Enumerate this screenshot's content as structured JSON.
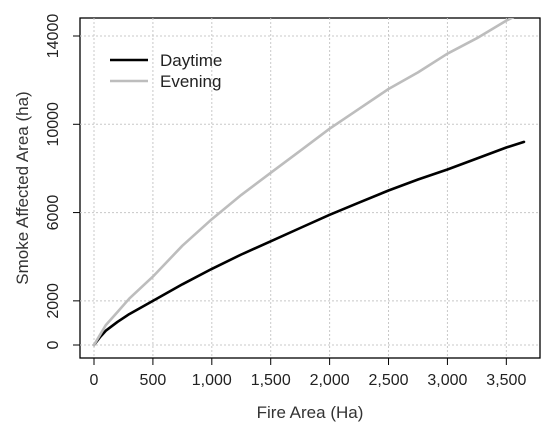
{
  "chart_data": {
    "type": "line",
    "title": "",
    "xlabel": "Fire Area (Ha)",
    "ylabel": "Smoke Affected Area (ha)",
    "xlim": [
      0,
      3650
    ],
    "ylim": [
      0,
      14000
    ],
    "x_ticks": [
      0,
      500,
      1000,
      1500,
      2000,
      2500,
      3000,
      3500
    ],
    "x_tick_labels": [
      "0",
      "500",
      "1,000",
      "1,500",
      "2,000",
      "2,500",
      "3,000",
      "3,500"
    ],
    "y_ticks": [
      0,
      2000,
      6000,
      10000,
      14000
    ],
    "y_tick_labels": [
      "0",
      "2000",
      "6000",
      "10000",
      "14000"
    ],
    "grid": true,
    "legend": "top-left",
    "series": [
      {
        "name": "Daytime",
        "color": "#000000",
        "x": [
          0,
          50,
          100,
          200,
          300,
          400,
          500,
          750,
          1000,
          1250,
          1500,
          1750,
          2000,
          2250,
          2500,
          2750,
          3000,
          3250,
          3500,
          3650
        ],
        "y": [
          0,
          350,
          650,
          1050,
          1400,
          1700,
          2000,
          2750,
          3450,
          4100,
          4700,
          5300,
          5900,
          6450,
          7000,
          7500,
          7950,
          8450,
          8950,
          9200
        ]
      },
      {
        "name": "Evening",
        "color": "#bdbdbd",
        "x": [
          0,
          50,
          100,
          200,
          300,
          400,
          500,
          750,
          1000,
          1250,
          1500,
          1750,
          2000,
          2250,
          2500,
          2750,
          3000,
          3250,
          3500,
          3650
        ],
        "y": [
          0,
          450,
          900,
          1500,
          2100,
          2600,
          3100,
          4500,
          5700,
          6800,
          7800,
          8800,
          9800,
          10700,
          11600,
          12350,
          13200,
          13900,
          14700,
          15100
        ]
      }
    ]
  }
}
